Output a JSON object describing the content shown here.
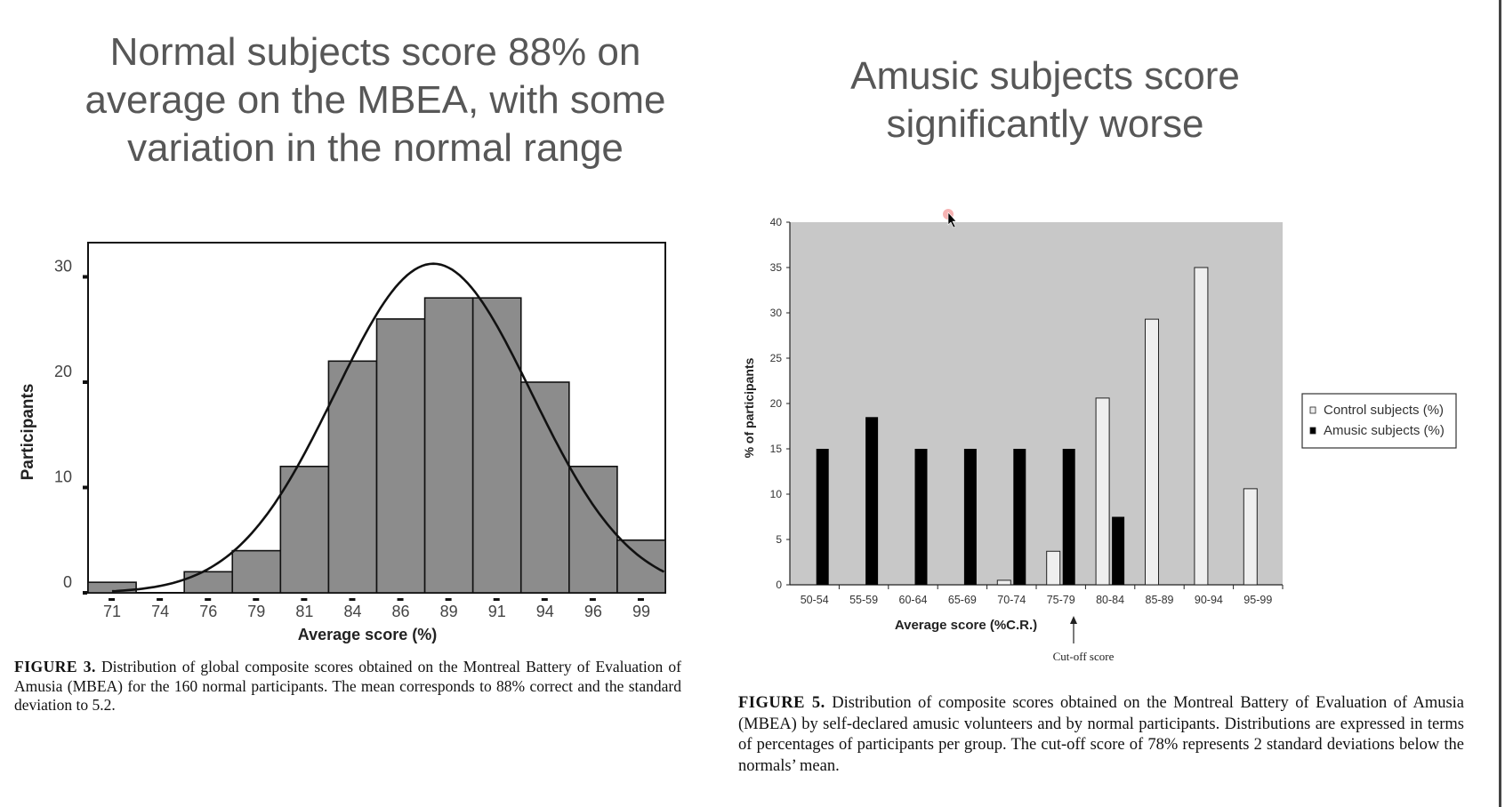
{
  "slide": {
    "left_title": "Normal subjects score 88% on average on the MBEA, with some variation in the normal range",
    "right_title": "Amusic subjects score significantly worse"
  },
  "captions": {
    "fig3_label": "FIGURE 3.",
    "fig3_text": "Distribution of global composite scores obtained on the Montreal Battery of Evaluation of Amusia (MBEA) for the 160 normal participants. The mean corresponds to 88% correct and the standard deviation to 5.2.",
    "fig5_label": "FIGURE 5.",
    "fig5_text": "Distribution of composite scores obtained on the Montreal Battery of Evaluation of Amusia (MBEA) by self-declared amusic volunteers and by normal participants. Distributions are expressed in terms of percentages of participants per group. The cut-off score of 78% represents 2 standard deviations below the normals’ mean."
  },
  "chart_data": [
    {
      "type": "bar",
      "subtype": "histogram",
      "xlabel": "Average score   (%)",
      "ylabel": "Participants",
      "categories": [
        "71",
        "74",
        "76",
        "79",
        "81",
        "84",
        "86",
        "89",
        "91",
        "94",
        "96",
        "99"
      ],
      "values": [
        1,
        0,
        2,
        4,
        12,
        22,
        26,
        28,
        28,
        20,
        12,
        5
      ],
      "yticks": [
        0,
        10,
        20,
        30
      ],
      "ylim": [
        0,
        33
      ],
      "fit": {
        "type": "normal",
        "mean": 88,
        "sd": 5.2,
        "n": 160
      },
      "bar_color": "#8c8c8c",
      "grid": false
    },
    {
      "type": "bar",
      "xlabel": "Average score (%C.R.)",
      "ylabel": "% of participants",
      "categories": [
        "50-54",
        "55-59",
        "60-64",
        "65-69",
        "70-74",
        "75-79",
        "80-84",
        "85-89",
        "90-94",
        "95-99"
      ],
      "series": [
        {
          "name": "Control subjects (%)",
          "values": [
            0,
            0,
            0,
            0,
            0.5,
            3.7,
            20.6,
            29.3,
            35,
            10.6
          ],
          "color": "#efefef"
        },
        {
          "name": "Amusic subjects (%)",
          "values": [
            15,
            18.5,
            15,
            15,
            15,
            15,
            7.5,
            0,
            0,
            0
          ],
          "color": "#000000"
        }
      ],
      "yticks": [
        0,
        5,
        10,
        15,
        20,
        25,
        30,
        35,
        40
      ],
      "ylim": [
        0,
        40
      ],
      "plot_background": "#c8c8c8",
      "legend_position": "right",
      "annotation": "Cut-off score",
      "grid": false
    }
  ]
}
